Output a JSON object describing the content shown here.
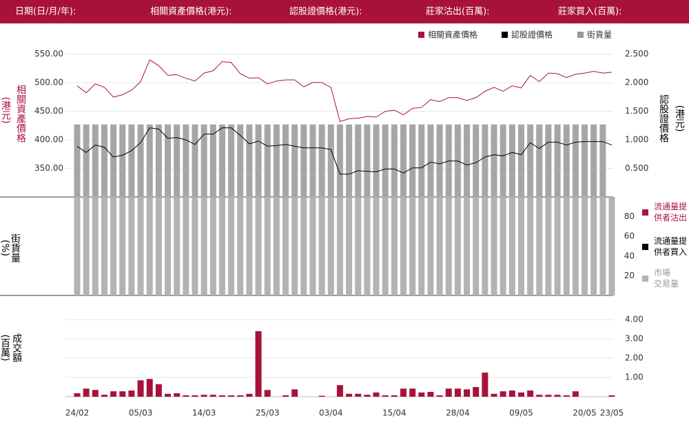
{
  "header": {
    "labels": [
      "日期(日/月/年):",
      "相關資產價格(港元):",
      "認股證價格(港元):",
      "莊家沽出(百萬):",
      "莊家買入(百萬):"
    ]
  },
  "chart_data": [
    {
      "type": "line",
      "y_label": "相關資產價格",
      "y_unit": "(港元)",
      "y2_label": "認股證價格",
      "y2_unit": "(港元)",
      "ylim": [
        300,
        575
      ],
      "yticks": [
        {
          "value": 350,
          "label": "350.00"
        },
        {
          "value": 400,
          "label": "400.00"
        },
        {
          "value": 450,
          "label": "450.00"
        },
        {
          "value": 500,
          "label": "500.00"
        },
        {
          "value": 550,
          "label": "550.00"
        }
      ],
      "y2lim": [
        0,
        2.75
      ],
      "y2ticks": [
        {
          "value": 0.5,
          "label": "0.500"
        },
        {
          "value": 1,
          "label": "1.000"
        },
        {
          "value": 1.5,
          "label": "1.500"
        },
        {
          "value": 2,
          "label": "2.000"
        },
        {
          "value": 2.5,
          "label": "2.500"
        }
      ],
      "grid": true,
      "series": [
        {
          "name": "相關資產價格",
          "color": "#a8123a",
          "values": [
            494.6,
            482.5,
            498,
            492,
            475,
            479,
            487,
            502,
            540,
            530,
            513,
            514,
            508,
            503,
            517,
            521,
            537,
            535.5,
            516,
            508,
            509,
            498,
            503,
            505,
            505,
            493,
            500.5,
            500.5,
            492,
            432,
            437,
            438,
            441,
            440,
            450,
            452,
            444,
            455,
            457,
            470.5,
            467,
            474,
            474,
            469,
            474,
            485,
            492,
            485,
            494.6,
            491,
            513,
            502,
            517,
            516,
            509,
            515,
            517,
            520,
            517,
            518.5
          ]
        },
        {
          "name": "認股證價格",
          "color": "#000000",
          "axis": "y2",
          "values": [
            0.886,
            0.78,
            0.91,
            0.87,
            0.7,
            0.73,
            0.81,
            0.95,
            1.21,
            1.19,
            1.03,
            1.04,
            1,
            0.92,
            1.1,
            1.1,
            1.21,
            1.21,
            1.08,
            0.93,
            0.98,
            0.89,
            0.9,
            0.92,
            0.89,
            0.86,
            0.86,
            0.86,
            0.83,
            0.4,
            0.4,
            0.46,
            0.45,
            0.44,
            0.49,
            0.49,
            0.42,
            0.51,
            0.51,
            0.61,
            0.58,
            0.63,
            0.63,
            0.56,
            0.6,
            0.7,
            0.74,
            0.72,
            0.78,
            0.74,
            0.95,
            0.85,
            0.96,
            0.96,
            0.91,
            0.96,
            0.97,
            0.97,
            0.97,
            0.91
          ]
        },
        {
          "name": "街貨量",
          "color": "#a6a6a6",
          "type": "bar",
          "axis": "y2",
          "values": [
            1.27,
            1.27,
            1.27,
            1.27,
            1.27,
            1.27,
            1.27,
            1.27,
            1.27,
            1.27,
            1.27,
            1.27,
            1.27,
            1.27,
            1.27,
            1.27,
            1.27,
            1.27,
            1.27,
            1.27,
            1.27,
            1.27,
            1.27,
            1.27,
            1.27,
            1.27,
            1.27,
            1.27,
            1.27,
            1.27,
            1.27,
            1.27,
            1.27,
            1.27,
            1.27,
            1.27,
            1.27,
            1.27,
            1.27,
            1.27,
            1.27,
            1.27,
            1.27,
            1.27,
            1.27,
            1.27,
            1.27,
            1.27,
            1.27,
            1.27,
            1.27,
            1.27,
            1.27,
            1.27,
            1.27,
            1.27,
            1.27,
            1.27,
            1.27,
            null
          ]
        }
      ]
    },
    {
      "type": "bar",
      "y_label": "街貨量",
      "y_unit": "(%)",
      "ylim": [
        0,
        100
      ],
      "yticks": [
        20,
        40,
        60,
        80
      ],
      "series": [
        {
          "name": "流通量提供者沽出",
          "color": "#a8123a"
        },
        {
          "name": "流通量提供者買入",
          "color": "#000000"
        },
        {
          "name": "市場交易量",
          "color": "#b3b3b3",
          "values": [
            100,
            100,
            100,
            100,
            100,
            100,
            100,
            100,
            100,
            100,
            100,
            100,
            100,
            100,
            100,
            100,
            100,
            100,
            100,
            100,
            100,
            100,
            100,
            100,
            100,
            100,
            100,
            100,
            100,
            100,
            100,
            100,
            100,
            100,
            100,
            100,
            100,
            100,
            100,
            100,
            100,
            100,
            100,
            100,
            100,
            100,
            100,
            100,
            100,
            100,
            100,
            100,
            100,
            100,
            100,
            100,
            100,
            100,
            100,
            100
          ]
        }
      ]
    },
    {
      "type": "bar",
      "y_label": "成交額",
      "y_unit": "(百萬)",
      "categories": [
        "24/02",
        null,
        null,
        null,
        null,
        null,
        null,
        "05/03",
        null,
        null,
        null,
        null,
        null,
        null,
        "14/03",
        null,
        null,
        null,
        null,
        null,
        null,
        "25/03",
        null,
        null,
        null,
        null,
        null,
        null,
        "03/04",
        null,
        null,
        null,
        null,
        null,
        null,
        "15/04",
        null,
        null,
        null,
        null,
        null,
        null,
        "28/04",
        null,
        null,
        null,
        null,
        null,
        null,
        "09/05",
        null,
        null,
        null,
        null,
        null,
        null,
        "20/05",
        null,
        null,
        "23/05"
      ],
      "values": [
        0.18,
        0.42,
        0.35,
        0.1,
        0.28,
        0.28,
        0.32,
        0.85,
        0.92,
        0.65,
        0.15,
        0.18,
        0.07,
        0.07,
        0.1,
        0.1,
        0.07,
        0.07,
        0.07,
        0.15,
        3.4,
        0.35,
        0,
        0.07,
        0.38,
        0,
        0,
        0.05,
        0,
        0.6,
        0.15,
        0.15,
        0.1,
        0.22,
        0.07,
        0.07,
        0.42,
        0.42,
        0.22,
        0.25,
        0.07,
        0.42,
        0.42,
        0.38,
        0.5,
        1.25,
        0.15,
        0.28,
        0.32,
        0.22,
        0.32,
        0.1,
        0.1,
        0.1,
        0.07,
        0.28,
        0,
        0,
        0,
        0.07
      ],
      "color": "#a8123a",
      "ylim": [
        0,
        5.25
      ],
      "yticks": [
        {
          "value": 1,
          "label": "1.00"
        },
        {
          "value": 2,
          "label": "2.00"
        },
        {
          "value": 3,
          "label": "3.00"
        },
        {
          "value": 4,
          "label": "4.00"
        }
      ],
      "grid": true
    }
  ]
}
